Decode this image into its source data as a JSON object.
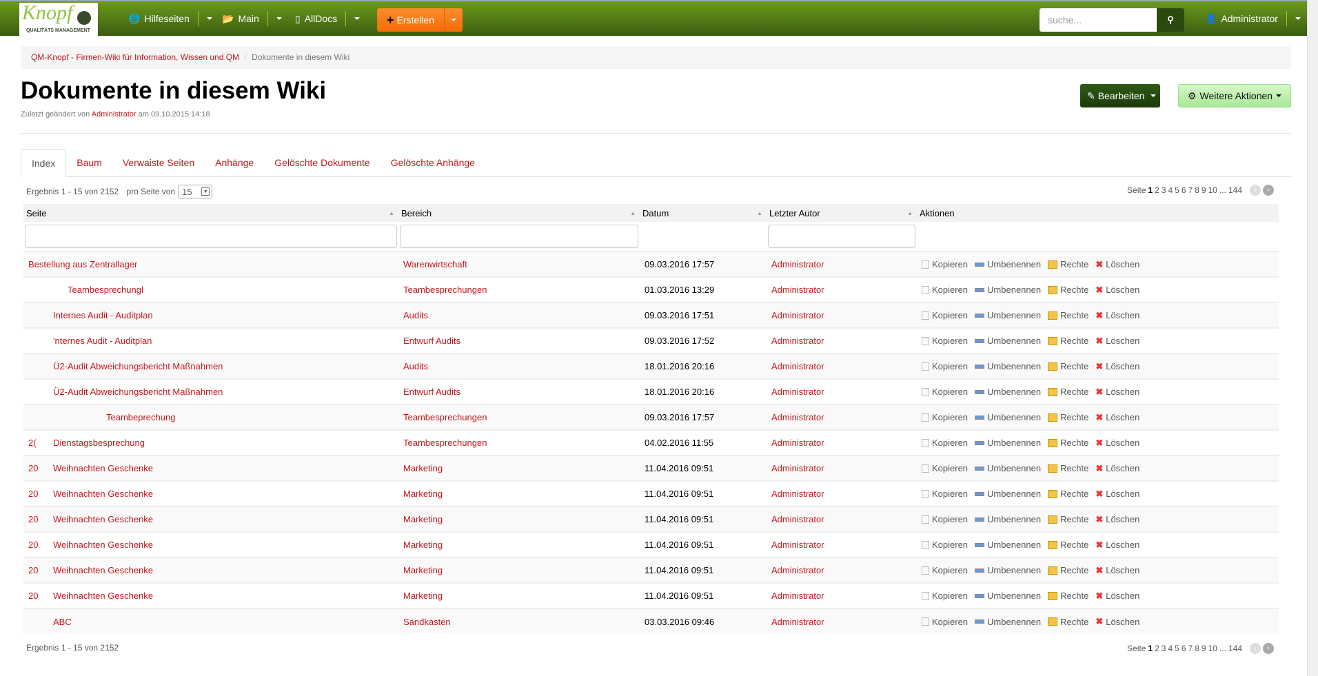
{
  "nav": {
    "logo_text": "Knopf",
    "logo_sub": "QUALITÄTS MANAGEMENT",
    "items": [
      {
        "label": "Hilfeseiten",
        "icon": "globe-icon"
      },
      {
        "label": "Main",
        "icon": "folder-open-icon"
      },
      {
        "label": "AllDocs",
        "icon": "file-icon"
      }
    ],
    "create_label": "Erstellen",
    "search_placeholder": "suche...",
    "user": "Administrator"
  },
  "breadcrumb": {
    "root": "QM-Knopf - Firmen-Wiki für Information, Wissen und QM",
    "sep": "/",
    "current": "Dokumente in diesem Wiki"
  },
  "page": {
    "title": "Dokumente in diesem Wiki",
    "changed_prefix": "Zuletzt geändert von",
    "changed_by": "Administrator",
    "changed_suffix": "am 09.10.2015 14:18",
    "edit_label": "Bearbeiten",
    "more_label": "Weitere Aktionen"
  },
  "tabs": [
    "Index",
    "Baum",
    "Verwaiste Seiten",
    "Anhänge",
    "Gelöschte Dokumente",
    "Gelöschte Anhänge"
  ],
  "results": {
    "text": "Ergebnis 1 - 15 von 2152",
    "per_page_label": "pro Seite von",
    "per_page": "15"
  },
  "pager": {
    "label": "Seite",
    "pages": [
      "1",
      "2",
      "3",
      "4",
      "5",
      "6",
      "7",
      "8",
      "9",
      "10",
      "...",
      "144"
    ],
    "current": "1"
  },
  "columns": [
    "Seite",
    "Bereich",
    "Datum",
    "Letzter Autor",
    "Aktionen"
  ],
  "actions": [
    "Kopieren",
    "Umbenennen",
    "Rechte",
    "Löschen"
  ],
  "rows": [
    {
      "prefix": "",
      "page": "Bestellung aus Zentrallager",
      "space": "Warenwirtschaft",
      "date": "09.03.2016 17:57",
      "author": "Administrator"
    },
    {
      "prefix": "",
      "page": "Teambesprechungl",
      "space": "Teambesprechungen",
      "date": "01.03.2016 13:29",
      "author": "Administrator",
      "indent": true
    },
    {
      "prefix": "",
      "page": "Internes Audit - Auditplan",
      "space": "Audits",
      "date": "09.03.2016 17:51",
      "author": "Administrator"
    },
    {
      "prefix": "",
      "page": "'nternes Audit - Auditplan",
      "space": "Entwurf Audits",
      "date": "09.03.2016 17:52",
      "author": "Administrator"
    },
    {
      "prefix": "",
      "page": "Ü2-Audit Abweichungsbericht Maßnahmen",
      "space": "Audits",
      "date": "18.01.2016 20:16",
      "author": "Administrator"
    },
    {
      "prefix": "",
      "page": "Ü2-Audit Abweichungsbericht Maßnahmen",
      "space": "Entwurf Audits",
      "date": "18.01.2016 20:16",
      "author": "Administrator"
    },
    {
      "prefix": "",
      "page": "Teambeprechung",
      "space": "Teambesprechungen",
      "date": "09.03.2016 17:57",
      "author": "Administrator",
      "indent": true
    },
    {
      "prefix": "2(",
      "page": "Dienstagsbesprechung",
      "space": "Teambesprechungen",
      "date": "04.02.2016 11:55",
      "author": "Administrator"
    },
    {
      "prefix": "20",
      "page": "Weihnachten Geschenke",
      "space": "Marketing",
      "date": "11.04.2016 09:51",
      "author": "Administrator"
    },
    {
      "prefix": "20",
      "page": "Weihnachten Geschenke",
      "space": "Marketing",
      "date": "11.04.2016 09:51",
      "author": "Administrator"
    },
    {
      "prefix": "20",
      "page": "Weihnachten Geschenke",
      "space": "Marketing",
      "date": "11.04.2016 09:51",
      "author": "Administrator"
    },
    {
      "prefix": "20",
      "page": "Weihnachten Geschenke",
      "space": "Marketing",
      "date": "11.04.2016 09:51",
      "author": "Administrator"
    },
    {
      "prefix": "20",
      "page": "Weihnachten Geschenke",
      "space": "Marketing",
      "date": "11.04.2016 09:51",
      "author": "Administrator"
    },
    {
      "prefix": "20",
      "page": "Weihnachten Geschenke",
      "space": "Marketing",
      "date": "11.04.2016 09:51",
      "author": "Administrator"
    },
    {
      "prefix": "",
      "page": "ABC",
      "space": "Sandkasten",
      "date": "03.03.2016 09:46",
      "author": "Administrator"
    }
  ],
  "colors": {
    "nav_top": "#6b9a1c",
    "nav_bottom": "#3b5c11",
    "link": "#c4161c",
    "create": "#f47a15"
  }
}
